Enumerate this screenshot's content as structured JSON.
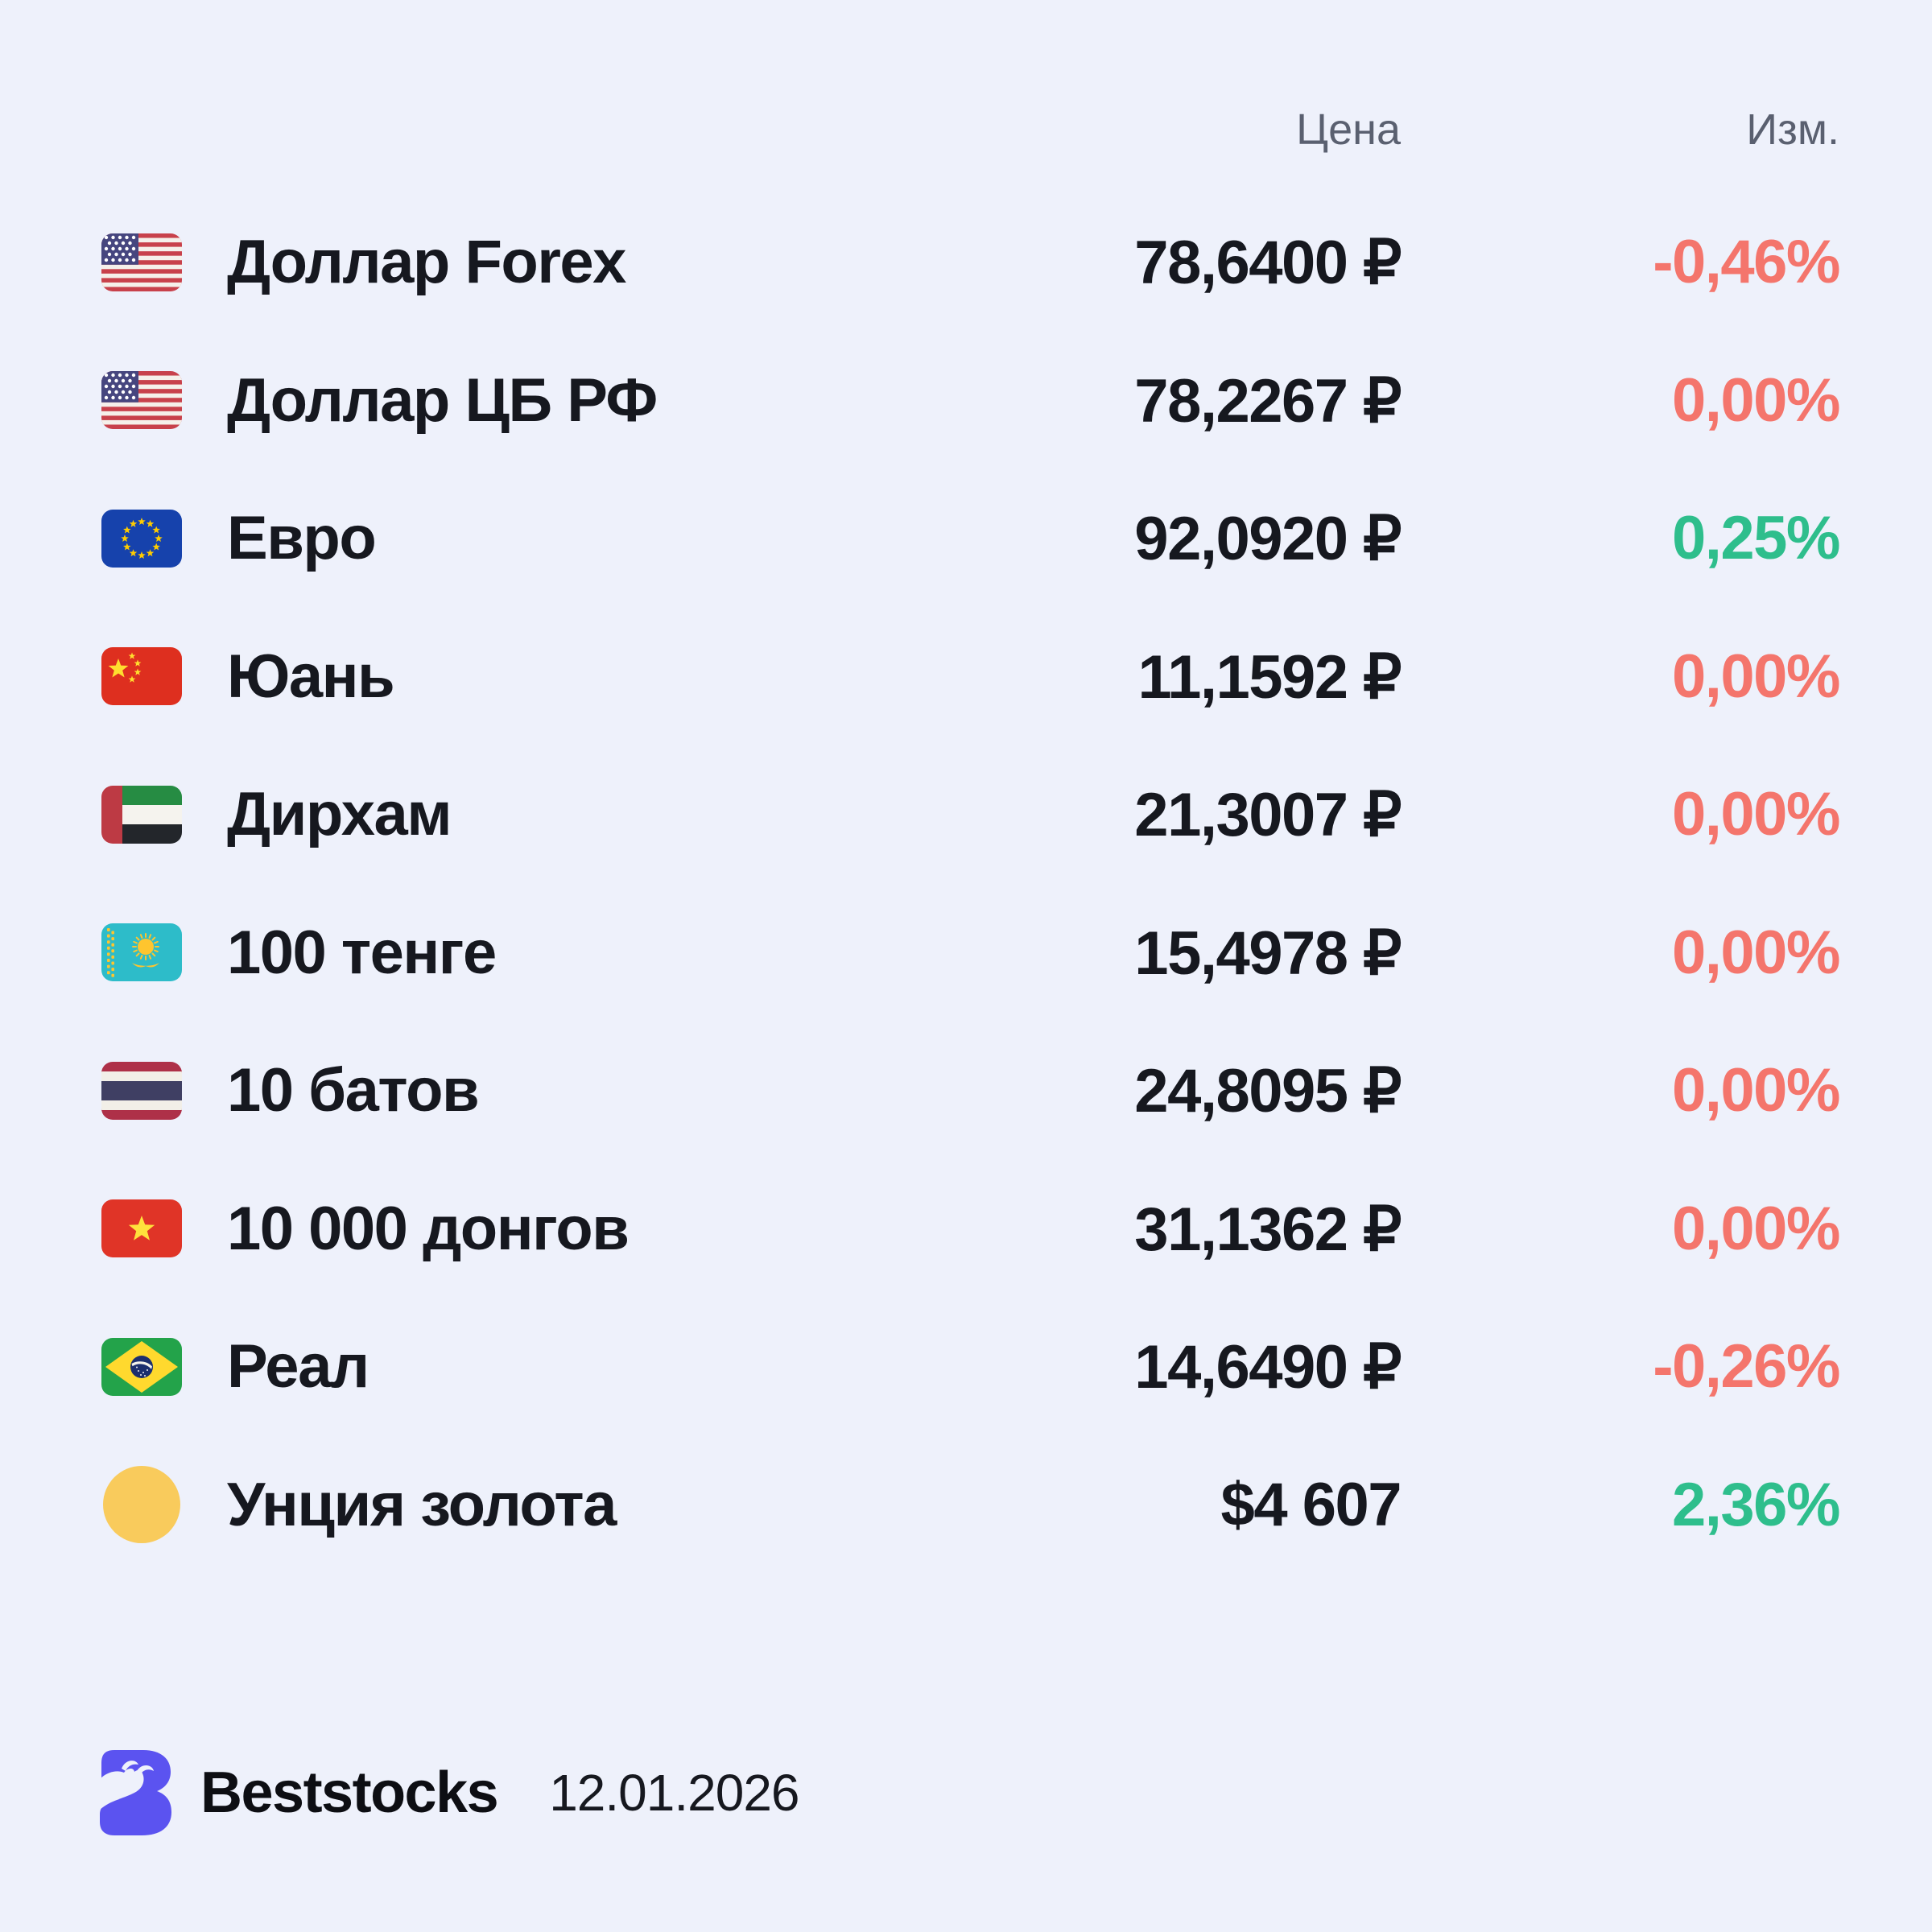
{
  "header": {
    "price_label": "Цена",
    "change_label": "Изм."
  },
  "rows": [
    {
      "icon": "us-flag",
      "name": "Доллар Forex",
      "price": "78,6400 ₽",
      "change": "-0,46%",
      "trend": "down"
    },
    {
      "icon": "us-flag",
      "name": "Доллар ЦБ РФ",
      "price": "78,2267 ₽",
      "change": "0,00%",
      "trend": "down"
    },
    {
      "icon": "eu-flag",
      "name": "Евро",
      "price": "92,0920 ₽",
      "change": "0,25%",
      "trend": "up"
    },
    {
      "icon": "china-flag",
      "name": "Юань",
      "price": "11,1592 ₽",
      "change": "0,00%",
      "trend": "down"
    },
    {
      "icon": "uae-flag",
      "name": "Дирхам",
      "price": "21,3007 ₽",
      "change": "0,00%",
      "trend": "down"
    },
    {
      "icon": "kazakhstan-flag",
      "name": "100 тенге",
      "price": "15,4978 ₽",
      "change": "0,00%",
      "trend": "down"
    },
    {
      "icon": "thailand-flag",
      "name": "10 батов",
      "price": "24,8095 ₽",
      "change": "0,00%",
      "trend": "down"
    },
    {
      "icon": "vietnam-flag",
      "name": "10 000 донгов",
      "price": "31,1362 ₽",
      "change": "0,00%",
      "trend": "down"
    },
    {
      "icon": "brazil-flag",
      "name": "Реал",
      "price": "14,6490 ₽",
      "change": "-0,26%",
      "trend": "down"
    },
    {
      "icon": "gold-circle",
      "name": "Унция золота",
      "price": "$4 607",
      "change": "2,36%",
      "trend": "up"
    }
  ],
  "footer": {
    "brand": "Beststocks",
    "date": "12.01.2026"
  },
  "colors": {
    "background": "#EEF1FB",
    "text": "#16181F",
    "muted_header": "#5A6070",
    "positive": "#2EBE8C",
    "negative": "#F4756C",
    "brand_logo": "#5B53F0",
    "gold": "#F9CB5C"
  }
}
